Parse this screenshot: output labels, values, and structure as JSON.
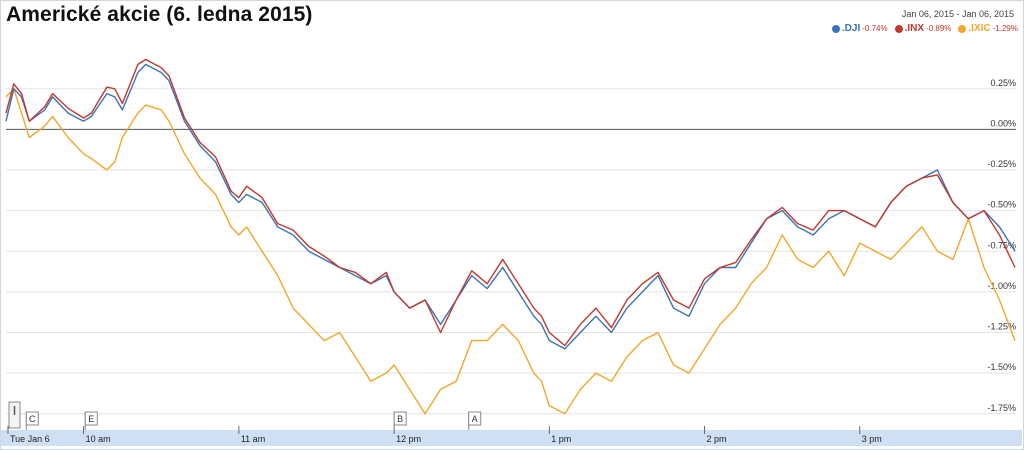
{
  "title": "Americké akcie (6. ledna 2015)",
  "date_range": "Jan 06, 2015  -  Jan 06, 2015",
  "colors": {
    "grid": "#e3e3e3",
    "zero": "#555555",
    "axis_bar": "#cfe0f5"
  },
  "legend": [
    {
      "name": ".DJI",
      "change": "-0.74%",
      "color": "#3a73b7"
    },
    {
      "name": ".INX",
      "change": "-0.89%",
      "color": "#c0392b"
    },
    {
      "name": ".IXIC",
      "change": "-1.29%",
      "color": "#f2a72a"
    }
  ],
  "chart_data": {
    "type": "line",
    "title": "Americké akcie (6. ledna 2015)",
    "ylim": [
      -1.85,
      0.55
    ],
    "y_ticks": [
      0.25,
      0.0,
      -0.25,
      -0.5,
      -0.75,
      -1.0,
      -1.25,
      -1.5,
      -1.75
    ],
    "y_tick_labels": [
      "0.25%",
      "0.00%",
      "-0.25%",
      "-0.50%",
      "-0.75%",
      "-1.00%",
      "-1.25%",
      "-1.50%",
      "-1.75%"
    ],
    "x_ticks": [
      0,
      0.5,
      1.5,
      2.5,
      3.5,
      4.5,
      5.5
    ],
    "x_tick_labels": [
      "Tue Jan 6",
      "10 am",
      "11 am",
      "12 pm",
      "1 pm",
      "2 pm",
      "3 pm"
    ],
    "x_range": [
      0,
      6.5
    ],
    "x_unit": "hours since 9:30 am",
    "grid": true,
    "legend_position": "top-right",
    "markers": [
      {
        "label": "C",
        "x": 0.15
      },
      {
        "label": "E",
        "x": 0.53
      },
      {
        "label": "B",
        "x": 2.52
      },
      {
        "label": "A",
        "x": 3.0
      }
    ],
    "series": [
      {
        "name": ".DJI",
        "x": [
          0,
          0.05,
          0.1,
          0.15,
          0.25,
          0.3,
          0.4,
          0.5,
          0.55,
          0.65,
          0.7,
          0.75,
          0.85,
          0.9,
          1.0,
          1.05,
          1.15,
          1.25,
          1.35,
          1.45,
          1.5,
          1.55,
          1.65,
          1.75,
          1.85,
          1.95,
          2.05,
          2.15,
          2.25,
          2.35,
          2.45,
          2.5,
          2.6,
          2.7,
          2.8,
          2.9,
          3.0,
          3.1,
          3.2,
          3.3,
          3.4,
          3.45,
          3.5,
          3.6,
          3.7,
          3.8,
          3.9,
          4.0,
          4.1,
          4.2,
          4.3,
          4.4,
          4.5,
          4.6,
          4.7,
          4.8,
          4.9,
          5.0,
          5.1,
          5.2,
          5.3,
          5.4,
          5.5,
          5.6,
          5.7,
          5.8,
          5.9,
          6.0,
          6.1,
          6.2,
          6.3,
          6.4,
          6.5
        ],
        "values": [
          0.05,
          0.25,
          0.2,
          0.05,
          0.12,
          0.2,
          0.1,
          0.05,
          0.08,
          0.22,
          0.2,
          0.12,
          0.35,
          0.4,
          0.35,
          0.3,
          0.05,
          -0.1,
          -0.2,
          -0.4,
          -0.45,
          -0.4,
          -0.45,
          -0.6,
          -0.65,
          -0.75,
          -0.8,
          -0.85,
          -0.9,
          -0.95,
          -0.9,
          -1.0,
          -1.1,
          -1.05,
          -1.2,
          -1.05,
          -0.9,
          -0.98,
          -0.85,
          -1.0,
          -1.15,
          -1.2,
          -1.3,
          -1.35,
          -1.25,
          -1.15,
          -1.25,
          -1.1,
          -1.0,
          -0.9,
          -1.1,
          -1.15,
          -0.95,
          -0.85,
          -0.85,
          -0.7,
          -0.55,
          -0.5,
          -0.6,
          -0.65,
          -0.55,
          -0.5,
          -0.55,
          -0.6,
          -0.45,
          -0.35,
          -0.3,
          -0.25,
          -0.45,
          -0.55,
          -0.5,
          -0.6,
          -0.75
        ]
      },
      {
        "name": ".INX",
        "x": [
          0,
          0.05,
          0.1,
          0.15,
          0.25,
          0.3,
          0.4,
          0.5,
          0.55,
          0.65,
          0.7,
          0.75,
          0.85,
          0.9,
          1.0,
          1.05,
          1.15,
          1.25,
          1.35,
          1.45,
          1.5,
          1.55,
          1.65,
          1.75,
          1.85,
          1.95,
          2.05,
          2.15,
          2.25,
          2.35,
          2.45,
          2.5,
          2.6,
          2.7,
          2.8,
          2.9,
          3.0,
          3.1,
          3.2,
          3.3,
          3.4,
          3.45,
          3.5,
          3.6,
          3.7,
          3.8,
          3.9,
          4.0,
          4.1,
          4.2,
          4.3,
          4.4,
          4.5,
          4.6,
          4.7,
          4.8,
          4.9,
          5.0,
          5.1,
          5.2,
          5.3,
          5.4,
          5.5,
          5.6,
          5.7,
          5.8,
          5.9,
          6.0,
          6.1,
          6.2,
          6.3,
          6.4,
          6.5
        ],
        "values": [
          0.1,
          0.28,
          0.22,
          0.05,
          0.14,
          0.22,
          0.13,
          0.07,
          0.1,
          0.26,
          0.25,
          0.16,
          0.4,
          0.43,
          0.38,
          0.33,
          0.07,
          -0.08,
          -0.17,
          -0.38,
          -0.42,
          -0.35,
          -0.42,
          -0.58,
          -0.62,
          -0.72,
          -0.78,
          -0.85,
          -0.88,
          -0.95,
          -0.88,
          -1.0,
          -1.1,
          -1.05,
          -1.25,
          -1.05,
          -0.87,
          -0.95,
          -0.8,
          -0.95,
          -1.1,
          -1.15,
          -1.25,
          -1.33,
          -1.2,
          -1.1,
          -1.22,
          -1.05,
          -0.95,
          -0.88,
          -1.05,
          -1.1,
          -0.92,
          -0.85,
          -0.82,
          -0.68,
          -0.55,
          -0.48,
          -0.58,
          -0.62,
          -0.5,
          -0.5,
          -0.55,
          -0.6,
          -0.45,
          -0.35,
          -0.3,
          -0.28,
          -0.45,
          -0.55,
          -0.5,
          -0.65,
          -0.85
        ]
      },
      {
        "name": ".IXIC",
        "x": [
          0,
          0.05,
          0.1,
          0.15,
          0.25,
          0.3,
          0.4,
          0.5,
          0.55,
          0.65,
          0.7,
          0.75,
          0.85,
          0.9,
          1.0,
          1.05,
          1.15,
          1.25,
          1.35,
          1.45,
          1.5,
          1.55,
          1.65,
          1.75,
          1.85,
          1.95,
          2.05,
          2.15,
          2.25,
          2.35,
          2.45,
          2.5,
          2.6,
          2.7,
          2.8,
          2.9,
          3.0,
          3.1,
          3.2,
          3.3,
          3.4,
          3.45,
          3.5,
          3.6,
          3.7,
          3.8,
          3.9,
          4.0,
          4.1,
          4.2,
          4.3,
          4.4,
          4.5,
          4.6,
          4.7,
          4.8,
          4.9,
          5.0,
          5.1,
          5.2,
          5.3,
          5.4,
          5.5,
          5.6,
          5.7,
          5.8,
          5.9,
          6.0,
          6.1,
          6.2,
          6.3,
          6.4,
          6.5
        ],
        "values": [
          0.2,
          0.25,
          0.1,
          -0.05,
          0.02,
          0.08,
          -0.05,
          -0.15,
          -0.18,
          -0.25,
          -0.2,
          -0.05,
          0.1,
          0.15,
          0.12,
          0.05,
          -0.15,
          -0.3,
          -0.4,
          -0.6,
          -0.65,
          -0.6,
          -0.75,
          -0.9,
          -1.1,
          -1.2,
          -1.3,
          -1.25,
          -1.4,
          -1.55,
          -1.5,
          -1.45,
          -1.6,
          -1.75,
          -1.6,
          -1.55,
          -1.3,
          -1.3,
          -1.2,
          -1.3,
          -1.5,
          -1.55,
          -1.7,
          -1.75,
          -1.6,
          -1.5,
          -1.55,
          -1.4,
          -1.3,
          -1.25,
          -1.45,
          -1.5,
          -1.35,
          -1.2,
          -1.1,
          -0.95,
          -0.85,
          -0.65,
          -0.8,
          -0.85,
          -0.75,
          -0.9,
          -0.7,
          -0.75,
          -0.8,
          -0.7,
          -0.6,
          -0.75,
          -0.8,
          -0.55,
          -0.85,
          -1.05,
          -1.3
        ]
      }
    ]
  }
}
